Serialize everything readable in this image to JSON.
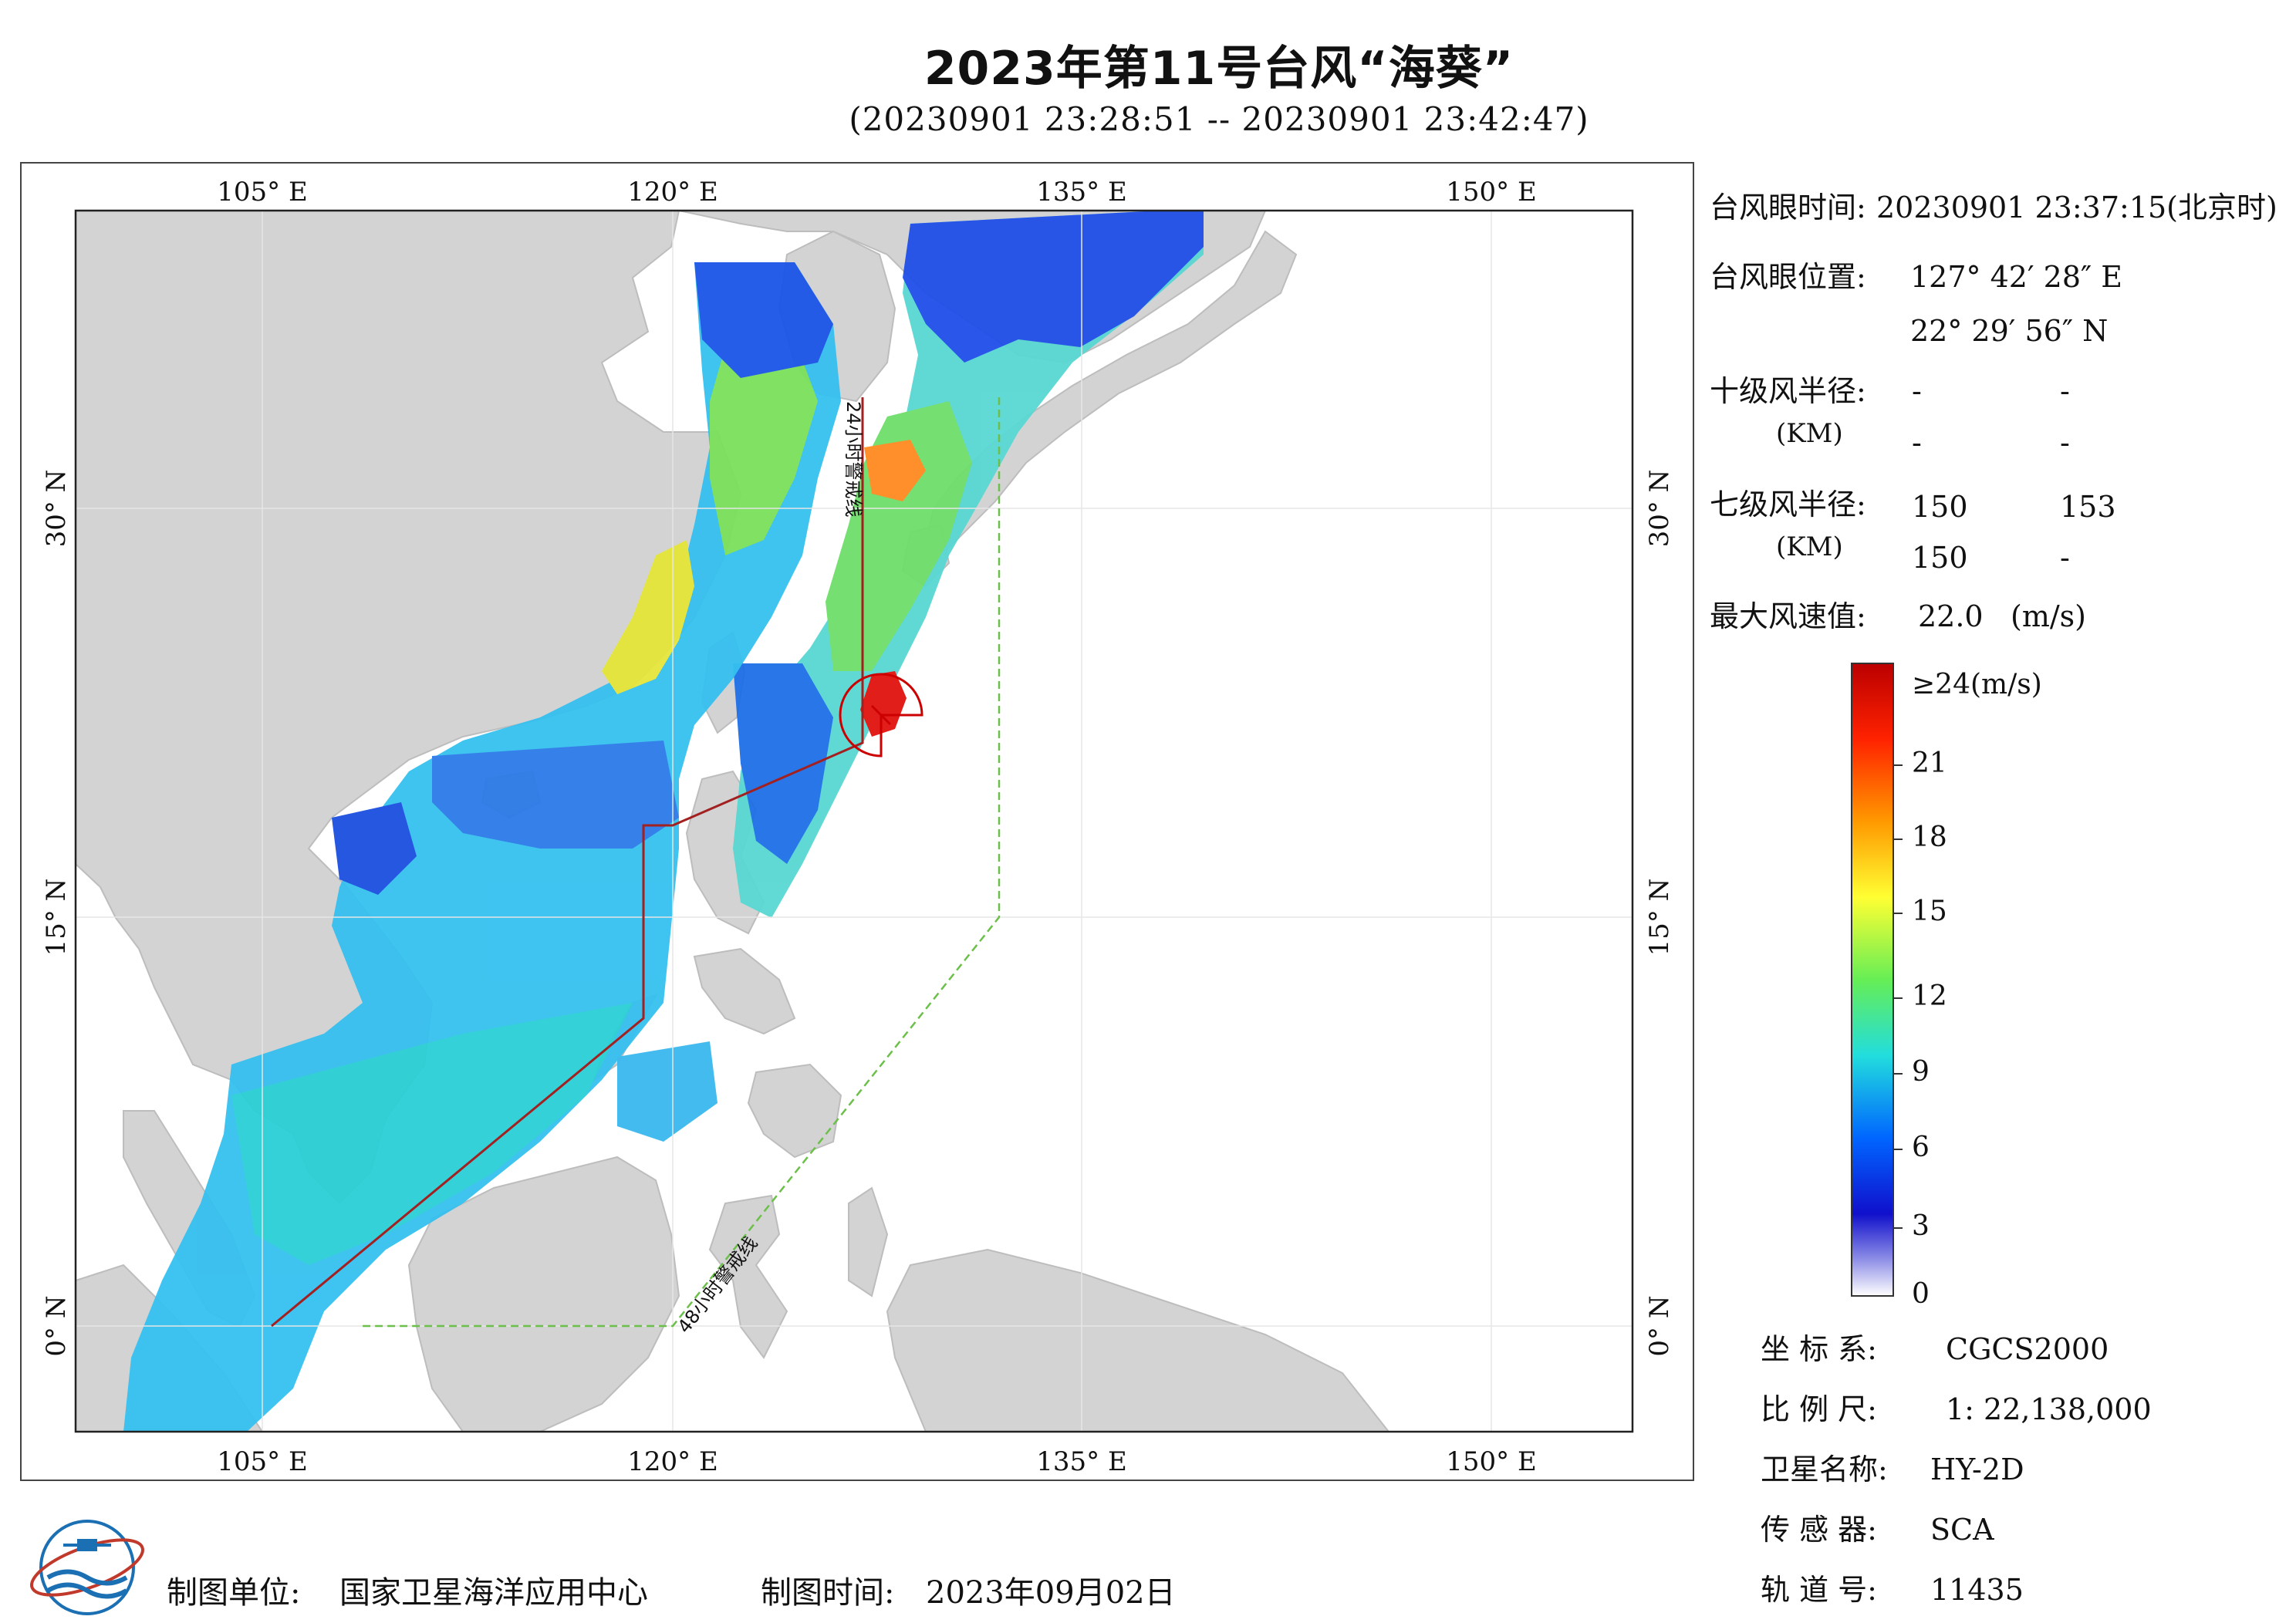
{
  "header": {
    "title": "2023年第11号台风“海葵”",
    "subtitle": "(20230901 23:28:51 -- 20230901 23:42:47)"
  },
  "map": {
    "lon_labels": [
      "105° E",
      "120° E",
      "135° E",
      "150° E"
    ],
    "lat_labels": [
      "30° N",
      "15° N",
      "0° N"
    ],
    "warning_line_24h": "24小时警戒线",
    "warning_line_48h": "48小时警戒线",
    "colors": {
      "land": "#d3d3d3",
      "ocean": "#ffffff",
      "track": "#b01818",
      "warning_48h": "#6cc04a"
    }
  },
  "info_panel": {
    "eye_time_label": "台风眼时间:",
    "eye_time_value": "20230901 23:37:15(北京时)",
    "eye_pos_label": "台风眼位置:",
    "eye_lon": "127° 42′ 28″ E",
    "eye_lat": "22° 29′ 56″ N",
    "r10_label": "十级风半径:",
    "r10_unit": "(KM)",
    "r10_values": [
      "-",
      "-",
      "-",
      "-"
    ],
    "r7_label": "七级风半径:",
    "r7_unit": "(KM)",
    "r7_values": [
      "150",
      "153",
      "150",
      "-"
    ],
    "max_wind_label": "最大风速值:",
    "max_wind_value": "22.0",
    "max_wind_unit": "(m/s)"
  },
  "colorbar": {
    "top_label": "≥24(m/s)",
    "ticks": [
      "21",
      "18",
      "15",
      "12",
      "9",
      "6",
      "3",
      "0"
    ],
    "colors": [
      "#bb0000",
      "#ff2a00",
      "#ff9900",
      "#ffff33",
      "#66ee55",
      "#22dddd",
      "#0066ff",
      "#1010cc",
      "#ffffff"
    ]
  },
  "meta": {
    "crs_label": "坐 标 系:",
    "crs_value": "CGCS2000",
    "scale_label": "比 例 尺:",
    "scale_value": "1: 22,138,000",
    "sat_label": "卫星名称:",
    "sat_value": "HY-2D",
    "sensor_label": "传 感 器:",
    "sensor_value": "SCA",
    "orbit_label": "轨 道 号:",
    "orbit_value": "11435"
  },
  "footer": {
    "unit_label": "制图单位:",
    "unit_value": "国家卫星海洋应用中心",
    "date_label": "制图时间:",
    "date_value": "2023年09月02日"
  }
}
